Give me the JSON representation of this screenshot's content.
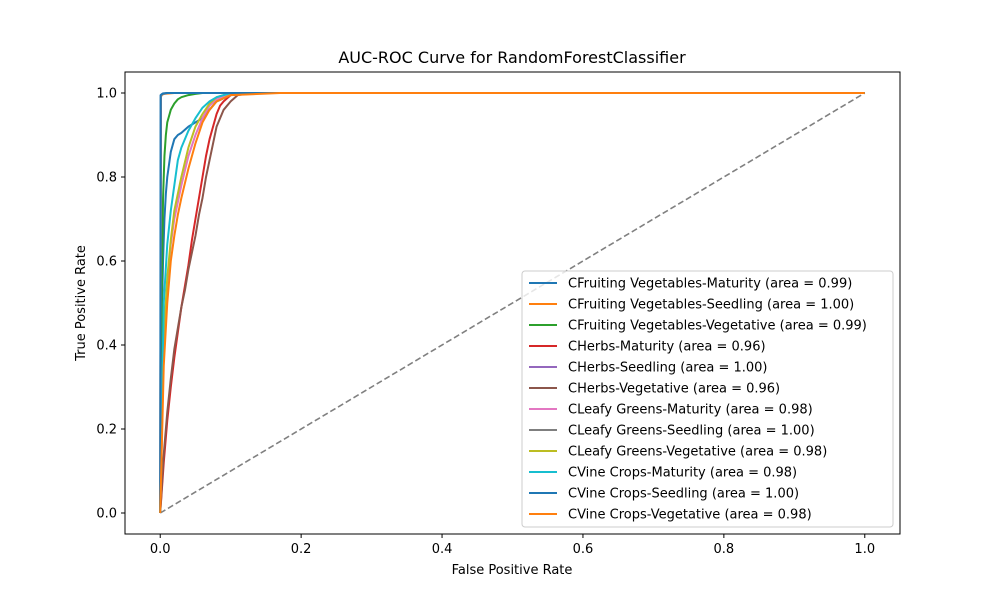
{
  "chart_data": {
    "type": "line",
    "title": "AUC-ROC Curve for RandomForestClassifier",
    "xlabel": "False Positive Rate",
    "ylabel": "True Positive Rate",
    "xlim": [
      -0.05,
      1.05
    ],
    "ylim": [
      -0.05,
      1.05
    ],
    "xticks": [
      "0.0",
      "0.2",
      "0.4",
      "0.6",
      "0.8",
      "1.0"
    ],
    "yticks": [
      "0.0",
      "0.2",
      "0.4",
      "0.6",
      "0.8",
      "1.0"
    ],
    "grid": false,
    "legend_position": "lower right",
    "diagonal": {
      "x": [
        0,
        1
      ],
      "y": [
        0,
        1
      ],
      "color": "#808080",
      "style": "dashed"
    },
    "series": [
      {
        "name": "CFruiting Vegetables-Maturity (area = 0.99)",
        "color": "#1f77b4",
        "x": [
          0,
          0.002,
          0.004,
          0.006,
          0.008,
          0.01,
          0.015,
          0.02,
          0.025,
          0.03,
          0.04,
          0.05,
          0.06,
          0.07,
          0.08,
          0.1,
          0.12,
          1.0
        ],
        "y": [
          0,
          0.45,
          0.6,
          0.7,
          0.76,
          0.8,
          0.86,
          0.89,
          0.9,
          0.905,
          0.92,
          0.93,
          0.94,
          0.96,
          0.98,
          0.995,
          1.0,
          1.0
        ]
      },
      {
        "name": "CFruiting Vegetables-Seedling (area = 1.00)",
        "color": "#ff7f0e",
        "x": [
          0,
          0.001,
          0.002,
          0.005,
          0.02,
          1.0
        ],
        "y": [
          0,
          0.99,
          0.995,
          0.998,
          1.0,
          1.0
        ]
      },
      {
        "name": "CFruiting Vegetables-Vegetative (area = 0.99)",
        "color": "#2ca02c",
        "x": [
          0,
          0.002,
          0.004,
          0.006,
          0.008,
          0.01,
          0.015,
          0.02,
          0.025,
          0.03,
          0.04,
          0.05,
          0.06,
          1.0
        ],
        "y": [
          0,
          0.5,
          0.75,
          0.85,
          0.9,
          0.93,
          0.96,
          0.975,
          0.985,
          0.99,
          0.995,
          0.998,
          1.0,
          1.0
        ]
      },
      {
        "name": "CHerbs-Maturity (area = 0.96)",
        "color": "#d62728",
        "x": [
          0,
          0.005,
          0.01,
          0.015,
          0.02,
          0.025,
          0.03,
          0.035,
          0.04,
          0.045,
          0.05,
          0.055,
          0.06,
          0.065,
          0.07,
          0.075,
          0.08,
          0.085,
          0.09,
          0.1,
          0.12,
          1.0
        ],
        "y": [
          0,
          0.12,
          0.22,
          0.3,
          0.37,
          0.43,
          0.49,
          0.54,
          0.59,
          0.65,
          0.7,
          0.75,
          0.8,
          0.85,
          0.89,
          0.92,
          0.95,
          0.97,
          0.98,
          0.995,
          1.0,
          1.0
        ]
      },
      {
        "name": "CHerbs-Seedling (area = 1.00)",
        "color": "#9467bd",
        "x": [
          0,
          0.001,
          0.003,
          0.01,
          1.0
        ],
        "y": [
          0,
          0.995,
          0.998,
          1.0,
          1.0
        ]
      },
      {
        "name": "CHerbs-Vegetative (area = 0.96)",
        "color": "#8c564b",
        "x": [
          0,
          0.005,
          0.01,
          0.015,
          0.02,
          0.025,
          0.03,
          0.035,
          0.04,
          0.045,
          0.05,
          0.055,
          0.06,
          0.065,
          0.07,
          0.075,
          0.08,
          0.09,
          0.1,
          0.11,
          0.13,
          1.0
        ],
        "y": [
          0,
          0.14,
          0.24,
          0.32,
          0.39,
          0.44,
          0.49,
          0.53,
          0.58,
          0.62,
          0.66,
          0.71,
          0.75,
          0.8,
          0.84,
          0.88,
          0.92,
          0.96,
          0.98,
          0.995,
          1.0,
          1.0
        ]
      },
      {
        "name": "CLeafy Greens-Maturity (area = 0.98)",
        "color": "#e377c2",
        "x": [
          0,
          0.005,
          0.01,
          0.015,
          0.02,
          0.03,
          0.04,
          0.05,
          0.06,
          0.07,
          0.08,
          0.1,
          1.0
        ],
        "y": [
          0,
          0.4,
          0.55,
          0.64,
          0.7,
          0.78,
          0.85,
          0.9,
          0.94,
          0.97,
          0.985,
          1.0,
          1.0
        ]
      },
      {
        "name": "CLeafy Greens-Seedling (area = 1.00)",
        "color": "#7f7f7f",
        "x": [
          0,
          0.001,
          0.003,
          0.01,
          1.0
        ],
        "y": [
          0,
          0.993,
          0.997,
          1.0,
          1.0
        ]
      },
      {
        "name": "CLeafy Greens-Vegetative (area = 0.98)",
        "color": "#bcbd22",
        "x": [
          0,
          0.005,
          0.01,
          0.015,
          0.02,
          0.03,
          0.04,
          0.05,
          0.06,
          0.07,
          0.08,
          0.1,
          1.0
        ],
        "y": [
          0,
          0.42,
          0.56,
          0.65,
          0.72,
          0.8,
          0.87,
          0.92,
          0.95,
          0.975,
          0.99,
          1.0,
          1.0
        ]
      },
      {
        "name": "CVine Crops-Maturity (area = 0.98)",
        "color": "#17becf",
        "x": [
          0,
          0.005,
          0.01,
          0.015,
          0.02,
          0.025,
          0.03,
          0.04,
          0.05,
          0.06,
          0.07,
          0.08,
          0.1,
          1.0
        ],
        "y": [
          0,
          0.5,
          0.64,
          0.72,
          0.78,
          0.84,
          0.87,
          0.91,
          0.94,
          0.965,
          0.98,
          0.99,
          1.0,
          1.0
        ]
      },
      {
        "name": "CVine Crops-Seedling (area = 1.00)",
        "color": "#1f77b4",
        "x": [
          0,
          0.0005,
          0.002,
          0.004,
          0.01,
          1.0
        ],
        "y": [
          0,
          0.995,
          0.997,
          0.999,
          1.0,
          1.0
        ]
      },
      {
        "name": "CVine Crops-Vegetative (area = 0.98)",
        "color": "#ff7f0e",
        "x": [
          0,
          0.005,
          0.01,
          0.015,
          0.02,
          0.025,
          0.03,
          0.04,
          0.05,
          0.06,
          0.07,
          0.08,
          0.1,
          0.17,
          1.0
        ],
        "y": [
          0,
          0.35,
          0.5,
          0.6,
          0.66,
          0.71,
          0.75,
          0.82,
          0.88,
          0.93,
          0.96,
          0.98,
          0.995,
          1.0,
          1.0
        ]
      }
    ]
  }
}
